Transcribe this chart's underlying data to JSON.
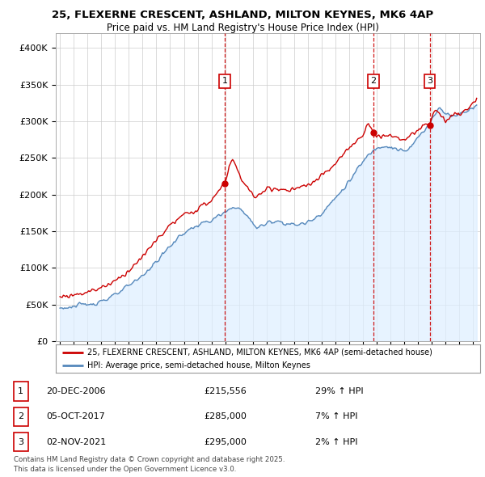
{
  "title_line1": "25, FLEXERNE CRESCENT, ASHLAND, MILTON KEYNES, MK6 4AP",
  "title_line2": "Price paid vs. HM Land Registry's House Price Index (HPI)",
  "ylim": [
    0,
    420000
  ],
  "yticks": [
    0,
    50000,
    100000,
    150000,
    200000,
    250000,
    300000,
    350000,
    400000
  ],
  "ytick_labels": [
    "£0",
    "£50K",
    "£100K",
    "£150K",
    "£200K",
    "£250K",
    "£300K",
    "£350K",
    "£400K"
  ],
  "xlim_start": 1994.7,
  "xlim_end": 2025.5,
  "xtick_years": [
    1995,
    1996,
    1997,
    1998,
    1999,
    2000,
    2001,
    2002,
    2003,
    2004,
    2005,
    2006,
    2007,
    2008,
    2009,
    2010,
    2011,
    2012,
    2013,
    2014,
    2015,
    2016,
    2017,
    2018,
    2019,
    2020,
    2021,
    2022,
    2023,
    2024,
    2025
  ],
  "property_color": "#cc0000",
  "hpi_color": "#5588bb",
  "hpi_fill_color": "#ddeeff",
  "vline_color": "#cc0000",
  "sale_dates": [
    2006.97,
    2017.76,
    2021.84
  ],
  "sale_prices": [
    215556,
    285000,
    295000
  ],
  "sale_labels": [
    "1",
    "2",
    "3"
  ],
  "legend_property": "25, FLEXERNE CRESCENT, ASHLAND, MILTON KEYNES, MK6 4AP (semi-detached house)",
  "legend_hpi": "HPI: Average price, semi-detached house, Milton Keynes",
  "table_rows": [
    {
      "num": "1",
      "date": "20-DEC-2006",
      "price": "£215,556",
      "hpi": "29% ↑ HPI"
    },
    {
      "num": "2",
      "date": "05-OCT-2017",
      "price": "£285,000",
      "hpi": "7% ↑ HPI"
    },
    {
      "num": "3",
      "date": "02-NOV-2021",
      "price": "£295,000",
      "hpi": "2% ↑ HPI"
    }
  ],
  "footer": "Contains HM Land Registry data © Crown copyright and database right 2025.\nThis data is licensed under the Open Government Licence v3.0.",
  "background_color": "#ffffff",
  "grid_color": "#cccccc"
}
